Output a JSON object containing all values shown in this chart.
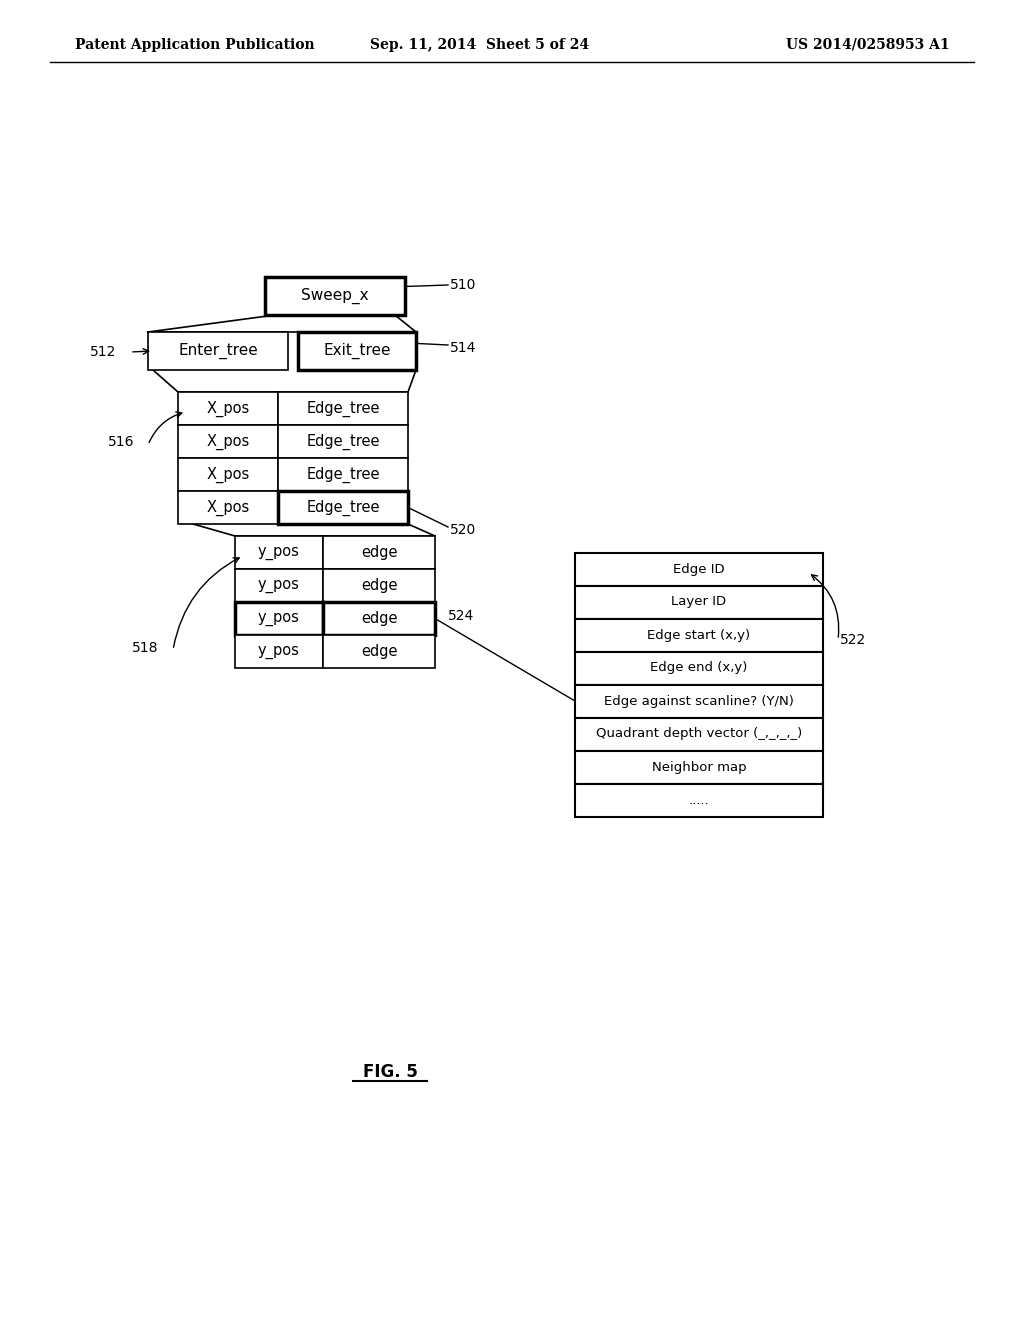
{
  "header_left": "Patent Application Publication",
  "header_center": "Sep. 11, 2014  Sheet 5 of 24",
  "header_right": "US 2014/0258953 A1",
  "fig_label": "FIG. 5",
  "bg_color": "#ffffff",
  "table1_rows": [
    [
      "X_pos",
      "Edge_tree"
    ],
    [
      "X_pos",
      "Edge_tree"
    ],
    [
      "X_pos",
      "Edge_tree"
    ],
    [
      "X_pos",
      "Edge_tree"
    ]
  ],
  "table2_rows": [
    [
      "y_pos",
      "edge"
    ],
    [
      "y_pos",
      "edge"
    ],
    [
      "y_pos",
      "edge"
    ],
    [
      "y_pos",
      "edge"
    ]
  ],
  "table3_rows": [
    "Edge ID",
    "Layer ID",
    "Edge start (x,y)",
    "Edge end (x,y)",
    "Edge against scanline? (Y/N)",
    "Quadrant depth vector (_,_,_,_)",
    "Neighbor map",
    "....."
  ],
  "labels": [
    "510",
    "512",
    "514",
    "516",
    "518",
    "520",
    "522",
    "524"
  ]
}
